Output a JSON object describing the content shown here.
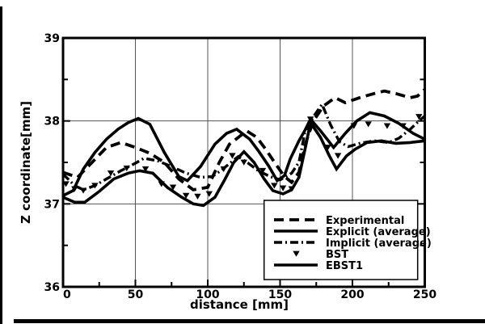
{
  "figure": {
    "background": "#ffffff",
    "line_color": "#000000",
    "grid_color": "#555555"
  },
  "chart_data": {
    "type": "line",
    "title": "",
    "xlabel": "distance [mm]",
    "ylabel": "Z coordinate[mm]",
    "xlim": [
      0,
      250
    ],
    "ylim": [
      36,
      39
    ],
    "x_ticks": [
      0,
      50,
      100,
      150,
      200,
      250
    ],
    "y_ticks": [
      36,
      37,
      38,
      39
    ],
    "x_minor_ticks": [
      25,
      75,
      125,
      175,
      225
    ],
    "y_minor_ticks": [
      36.5,
      37.5,
      38.5
    ],
    "grid": true,
    "legend_position": "lower-right-inside",
    "series": [
      {
        "name": "Experimental",
        "style": "dashed",
        "points": [
          [
            0,
            37.38
          ],
          [
            10,
            37.32
          ],
          [
            20,
            37.5
          ],
          [
            30,
            37.68
          ],
          [
            40,
            37.74
          ],
          [
            50,
            37.68
          ],
          [
            60,
            37.61
          ],
          [
            70,
            37.5
          ],
          [
            80,
            37.3
          ],
          [
            90,
            37.17
          ],
          [
            100,
            37.2
          ],
          [
            108,
            37.5
          ],
          [
            115,
            37.72
          ],
          [
            127,
            37.88
          ],
          [
            134,
            37.8
          ],
          [
            140,
            37.66
          ],
          [
            147,
            37.48
          ],
          [
            153,
            37.33
          ],
          [
            158,
            37.26
          ],
          [
            163,
            37.38
          ],
          [
            168,
            37.75
          ],
          [
            173,
            38.0
          ],
          [
            180,
            38.18
          ],
          [
            188,
            38.28
          ],
          [
            195,
            38.22
          ],
          [
            205,
            38.28
          ],
          [
            215,
            38.33
          ],
          [
            222,
            38.36
          ],
          [
            230,
            38.33
          ],
          [
            240,
            38.28
          ],
          [
            245,
            38.3
          ],
          [
            250,
            38.38
          ]
        ]
      },
      {
        "name": "Explicit (average)",
        "style": "solid",
        "points": [
          [
            0,
            37.1
          ],
          [
            7,
            37.16
          ],
          [
            14,
            37.42
          ],
          [
            22,
            37.62
          ],
          [
            30,
            37.78
          ],
          [
            38,
            37.9
          ],
          [
            45,
            37.98
          ],
          [
            52,
            38.03
          ],
          [
            60,
            37.96
          ],
          [
            70,
            37.62
          ],
          [
            80,
            37.33
          ],
          [
            86,
            37.28
          ],
          [
            95,
            37.45
          ],
          [
            105,
            37.72
          ],
          [
            113,
            37.85
          ],
          [
            120,
            37.9
          ],
          [
            129,
            37.78
          ],
          [
            135,
            37.64
          ],
          [
            142,
            37.46
          ],
          [
            148,
            37.28
          ],
          [
            153,
            37.34
          ],
          [
            157,
            37.54
          ],
          [
            163,
            37.76
          ],
          [
            167,
            37.88
          ],
          [
            171,
            38.02
          ],
          [
            178,
            37.88
          ],
          [
            187,
            37.68
          ],
          [
            195,
            37.85
          ],
          [
            203,
            38.0
          ],
          [
            212,
            38.1
          ],
          [
            222,
            38.06
          ],
          [
            232,
            37.97
          ],
          [
            242,
            37.85
          ],
          [
            250,
            37.78
          ]
        ]
      },
      {
        "name": "Implicit (average)",
        "style": "dashdot",
        "points": [
          [
            0,
            37.36
          ],
          [
            8,
            37.22
          ],
          [
            14,
            37.17
          ],
          [
            22,
            37.22
          ],
          [
            30,
            37.3
          ],
          [
            40,
            37.4
          ],
          [
            50,
            37.49
          ],
          [
            56,
            37.55
          ],
          [
            65,
            37.52
          ],
          [
            75,
            37.45
          ],
          [
            85,
            37.37
          ],
          [
            95,
            37.32
          ],
          [
            103,
            37.33
          ],
          [
            109,
            37.4
          ],
          [
            116,
            37.5
          ],
          [
            121,
            37.57
          ],
          [
            128,
            37.49
          ],
          [
            135,
            37.4
          ],
          [
            143,
            37.33
          ],
          [
            150,
            37.29
          ],
          [
            158,
            37.37
          ],
          [
            163,
            37.5
          ],
          [
            167,
            37.85
          ],
          [
            173,
            38.05
          ],
          [
            179,
            38.2
          ],
          [
            185,
            37.95
          ],
          [
            191,
            37.75
          ],
          [
            197,
            37.69
          ],
          [
            205,
            37.73
          ],
          [
            215,
            37.76
          ],
          [
            225,
            37.74
          ],
          [
            232,
            37.79
          ],
          [
            240,
            37.9
          ],
          [
            246,
            38.0
          ],
          [
            250,
            38.06
          ]
        ]
      },
      {
        "name": "BST",
        "style": "scatter-triangle-down",
        "points": [
          [
            2,
            37.24
          ],
          [
            8,
            37.18
          ],
          [
            14,
            37.16
          ],
          [
            22,
            37.22
          ],
          [
            33,
            37.37
          ],
          [
            44,
            37.43
          ],
          [
            57,
            37.42
          ],
          [
            68,
            37.24
          ],
          [
            76,
            37.2
          ],
          [
            85,
            37.1
          ],
          [
            93,
            37.09
          ],
          [
            101,
            37.12
          ],
          [
            111,
            37.42
          ],
          [
            117,
            37.58
          ],
          [
            125,
            37.5
          ],
          [
            138,
            37.4
          ],
          [
            146,
            37.22
          ],
          [
            152,
            37.19
          ],
          [
            158,
            37.18
          ],
          [
            171,
            38.02
          ],
          [
            183,
            37.68
          ],
          [
            190,
            37.58
          ],
          [
            201,
            37.94
          ],
          [
            211,
            37.96
          ],
          [
            224,
            37.94
          ],
          [
            235,
            37.94
          ],
          [
            246,
            38.05
          ]
        ]
      },
      {
        "name": "EBST1",
        "style": "solid",
        "points": [
          [
            0,
            37.08
          ],
          [
            8,
            37.02
          ],
          [
            15,
            37.02
          ],
          [
            25,
            37.15
          ],
          [
            35,
            37.3
          ],
          [
            45,
            37.37
          ],
          [
            53,
            37.4
          ],
          [
            62,
            37.37
          ],
          [
            72,
            37.2
          ],
          [
            82,
            37.08
          ],
          [
            90,
            37.0
          ],
          [
            97,
            36.98
          ],
          [
            105,
            37.08
          ],
          [
            112,
            37.3
          ],
          [
            118,
            37.5
          ],
          [
            125,
            37.63
          ],
          [
            132,
            37.5
          ],
          [
            139,
            37.3
          ],
          [
            145,
            37.16
          ],
          [
            152,
            37.12
          ],
          [
            158,
            37.17
          ],
          [
            163,
            37.32
          ],
          [
            168,
            37.72
          ],
          [
            171,
            37.98
          ],
          [
            178,
            37.8
          ],
          [
            184,
            37.58
          ],
          [
            189,
            37.42
          ],
          [
            196,
            37.58
          ],
          [
            202,
            37.66
          ],
          [
            210,
            37.74
          ],
          [
            220,
            37.76
          ],
          [
            230,
            37.73
          ],
          [
            240,
            37.74
          ],
          [
            250,
            37.76
          ]
        ]
      }
    ]
  },
  "legend": {
    "entries": [
      "Experimental",
      "Explicit (average)",
      "Implicit (average)",
      "BST",
      "EBST1"
    ]
  }
}
